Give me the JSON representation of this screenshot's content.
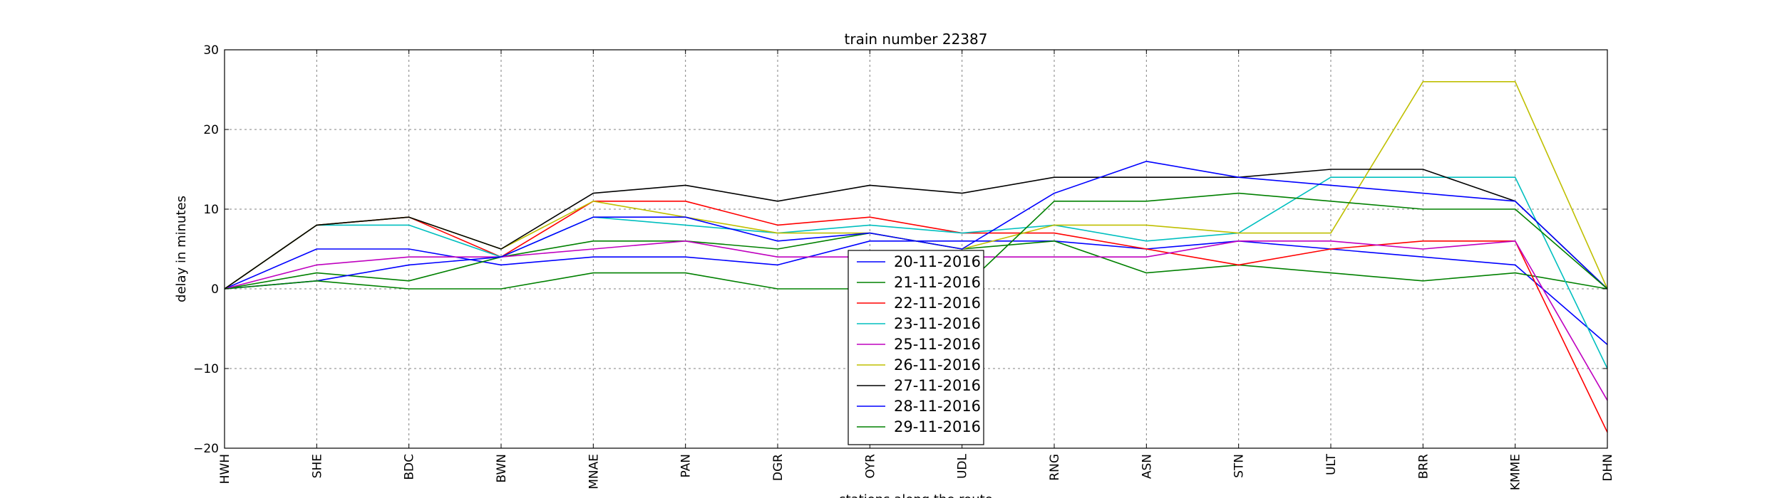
{
  "chart_data": {
    "type": "line",
    "title": "train number 22387",
    "xlabel": "stations along the route",
    "ylabel": "delay in minutes",
    "ylim": [
      -20,
      30
    ],
    "yticks": [
      -20,
      -10,
      0,
      10,
      20,
      30
    ],
    "categories": [
      "HWH",
      "SHE",
      "BDC",
      "BWN",
      "MNAE",
      "PAN",
      "DGR",
      "OYR",
      "UDL",
      "RNG",
      "ASN",
      "STN",
      "ULT",
      "BRR",
      "KMME",
      "DHN"
    ],
    "grid": true,
    "legend_position": "bottom-center",
    "series": [
      {
        "name": "20-11-2016",
        "color": "#0000ff",
        "values": [
          0,
          5,
          5,
          3,
          4,
          4,
          3,
          6,
          6,
          6,
          5,
          6,
          5,
          4,
          3,
          -7
        ]
      },
      {
        "name": "21-11-2016",
        "color": "#008000",
        "values": [
          0,
          2,
          1,
          4,
          6,
          6,
          5,
          7,
          5,
          6,
          2,
          3,
          2,
          1,
          2,
          0
        ]
      },
      {
        "name": "22-11-2016",
        "color": "#ff0000",
        "values": [
          0,
          8,
          9,
          4,
          11,
          11,
          8,
          9,
          7,
          7,
          5,
          3,
          5,
          6,
          6,
          -18
        ]
      },
      {
        "name": "23-11-2016",
        "color": "#00bfbf",
        "values": [
          0,
          8,
          8,
          4,
          9,
          8,
          7,
          8,
          7,
          8,
          6,
          7,
          14,
          14,
          14,
          -10
        ]
      },
      {
        "name": "25-11-2016",
        "color": "#bf00bf",
        "values": [
          0,
          3,
          4,
          4,
          5,
          6,
          4,
          4,
          4,
          4,
          4,
          6,
          6,
          5,
          6,
          -14
        ]
      },
      {
        "name": "26-11-2016",
        "color": "#bfbf00",
        "values": [
          0,
          8,
          9,
          5,
          11,
          9,
          7,
          7,
          5,
          8,
          8,
          7,
          7,
          26,
          26,
          0
        ]
      },
      {
        "name": "27-11-2016",
        "color": "#000000",
        "values": [
          0,
          8,
          9,
          5,
          12,
          13,
          11,
          13,
          12,
          14,
          14,
          14,
          15,
          15,
          11,
          0
        ]
      },
      {
        "name": "28-11-2016",
        "color": "#0000ff",
        "values": [
          0,
          1,
          3,
          4,
          9,
          9,
          6,
          7,
          5,
          12,
          16,
          14,
          13,
          12,
          11,
          0
        ]
      },
      {
        "name": "29-11-2016",
        "color": "#008000",
        "values": [
          0,
          1,
          0,
          0,
          2,
          2,
          0,
          0,
          0,
          11,
          11,
          12,
          11,
          10,
          10,
          0
        ]
      }
    ]
  }
}
